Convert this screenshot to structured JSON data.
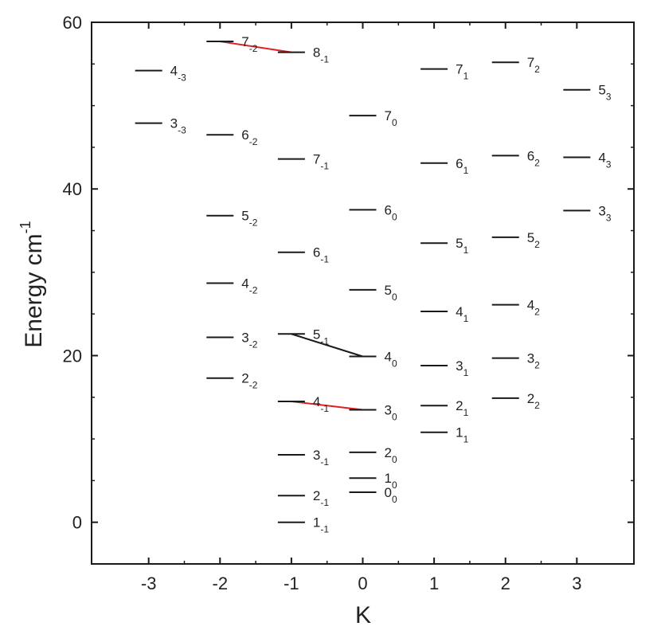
{
  "chart_data": {
    "type": "scatter",
    "title": "",
    "xlabel": "K",
    "ylabel": "Energy cm",
    "ylabel_superscript": "-1",
    "xlim": [
      -3.8,
      3.8
    ],
    "ylim": [
      -5,
      60
    ],
    "x_ticks": [
      -3,
      -2,
      -1,
      0,
      1,
      2,
      3
    ],
    "y_ticks": [
      0,
      20,
      40,
      60
    ],
    "grid": false,
    "colors": {
      "level": "#1a1a1a",
      "red_connector": "#e02020",
      "black_connector": "#1a1a1a"
    },
    "levels": [
      {
        "K": -3,
        "J": "4",
        "Ksub": "-3",
        "energy": 54.2
      },
      {
        "K": -3,
        "J": "3",
        "Ksub": "-3",
        "energy": 47.9
      },
      {
        "K": -2,
        "J": "7",
        "Ksub": "-2",
        "energy": 57.7
      },
      {
        "K": -2,
        "J": "6",
        "Ksub": "-2",
        "energy": 46.5
      },
      {
        "K": -2,
        "J": "5",
        "Ksub": "-2",
        "energy": 36.8
      },
      {
        "K": -2,
        "J": "4",
        "Ksub": "-2",
        "energy": 28.7
      },
      {
        "K": -2,
        "J": "3",
        "Ksub": "-2",
        "energy": 22.2
      },
      {
        "K": -2,
        "J": "2",
        "Ksub": "-2",
        "energy": 17.3
      },
      {
        "K": -1,
        "J": "8",
        "Ksub": "-1",
        "energy": 56.4
      },
      {
        "K": -1,
        "J": "7",
        "Ksub": "-1",
        "energy": 43.6
      },
      {
        "K": -1,
        "J": "6",
        "Ksub": "-1",
        "energy": 32.4
      },
      {
        "K": -1,
        "J": "5",
        "Ksub": "-1",
        "energy": 22.6
      },
      {
        "K": -1,
        "J": "4",
        "Ksub": "-1",
        "energy": 14.5
      },
      {
        "K": -1,
        "J": "3",
        "Ksub": "-1",
        "energy": 8.1
      },
      {
        "K": -1,
        "J": "2",
        "Ksub": "-1",
        "energy": 3.2
      },
      {
        "K": -1,
        "J": "1",
        "Ksub": "-1",
        "energy": 0.0
      },
      {
        "K": 0,
        "J": "7",
        "Ksub": "0",
        "energy": 48.8
      },
      {
        "K": 0,
        "J": "6",
        "Ksub": "0",
        "energy": 37.5
      },
      {
        "K": 0,
        "J": "5",
        "Ksub": "0",
        "energy": 27.9
      },
      {
        "K": 0,
        "J": "4",
        "Ksub": "0",
        "energy": 19.9
      },
      {
        "K": 0,
        "J": "3",
        "Ksub": "0",
        "energy": 13.5
      },
      {
        "K": 0,
        "J": "2",
        "Ksub": "0",
        "energy": 8.4
      },
      {
        "K": 0,
        "J": "1",
        "Ksub": "0",
        "energy": 5.3
      },
      {
        "K": 0,
        "J": "0",
        "Ksub": "0",
        "energy": 3.6
      },
      {
        "K": 1,
        "J": "7",
        "Ksub": "1",
        "energy": 54.4
      },
      {
        "K": 1,
        "J": "6",
        "Ksub": "1",
        "energy": 43.1
      },
      {
        "K": 1,
        "J": "5",
        "Ksub": "1",
        "energy": 33.5
      },
      {
        "K": 1,
        "J": "4",
        "Ksub": "1",
        "energy": 25.3
      },
      {
        "K": 1,
        "J": "3",
        "Ksub": "1",
        "energy": 18.8
      },
      {
        "K": 1,
        "J": "2",
        "Ksub": "1",
        "energy": 14.0
      },
      {
        "K": 1,
        "J": "1",
        "Ksub": "1",
        "energy": 10.8
      },
      {
        "K": 2,
        "J": "7",
        "Ksub": "2",
        "energy": 55.2
      },
      {
        "K": 2,
        "J": "6",
        "Ksub": "2",
        "energy": 44.0
      },
      {
        "K": 2,
        "J": "5",
        "Ksub": "2",
        "energy": 34.2
      },
      {
        "K": 2,
        "J": "4",
        "Ksub": "2",
        "energy": 26.1
      },
      {
        "K": 2,
        "J": "3",
        "Ksub": "2",
        "energy": 19.7
      },
      {
        "K": 2,
        "J": "2",
        "Ksub": "2",
        "energy": 14.9
      },
      {
        "K": 3,
        "J": "5",
        "Ksub": "3",
        "energy": 51.9
      },
      {
        "K": 3,
        "J": "4",
        "Ksub": "3",
        "energy": 43.8
      },
      {
        "K": 3,
        "J": "3",
        "Ksub": "3",
        "energy": 37.4
      }
    ],
    "connectors": [
      {
        "from_K": -2,
        "from_energy": 57.7,
        "to_K": -1,
        "to_energy": 56.4,
        "color": "red"
      },
      {
        "from_K": -1,
        "from_energy": 22.6,
        "to_K": 0,
        "to_energy": 19.9,
        "color": "black"
      },
      {
        "from_K": -1,
        "from_energy": 14.5,
        "to_K": 0,
        "to_energy": 13.5,
        "color": "red"
      }
    ]
  }
}
